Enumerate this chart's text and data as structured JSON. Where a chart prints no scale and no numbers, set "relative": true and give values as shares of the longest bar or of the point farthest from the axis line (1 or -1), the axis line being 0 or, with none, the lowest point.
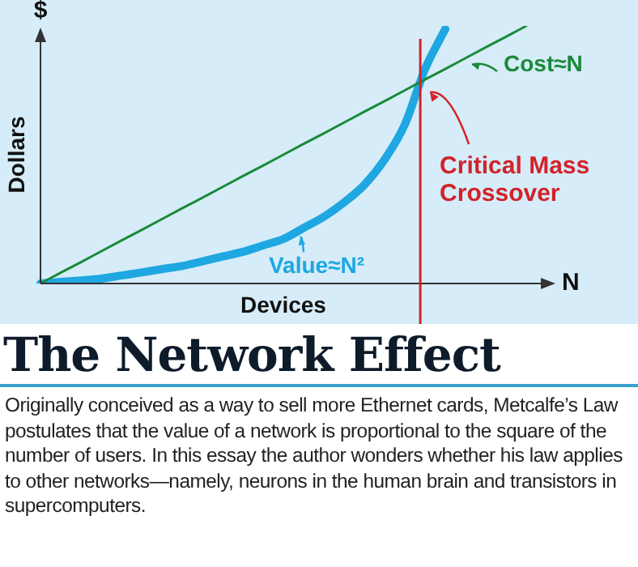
{
  "chart_data": {
    "type": "line",
    "relative": true,
    "title": "The Network Effect",
    "xlabel": "Devices",
    "ylabel": "Dollars",
    "categories": [
      null,
      null,
      null,
      null,
      null,
      null,
      null,
      null,
      null,
      null,
      null,
      null,
      null,
      null,
      null,
      null,
      null,
      null,
      null,
      null,
      null,
      null,
      null,
      null,
      null
    ],
    "series": [
      {
        "name": "Cost≈N",
        "color": "#1a8a3a",
        "values": [
          0,
          0.042,
          0.083,
          0.125,
          0.167,
          0.208,
          0.25,
          0.292,
          0.333,
          0.375,
          0.417,
          0.458,
          0.5,
          0.542,
          0.583,
          0.625,
          0.667,
          0.708,
          0.75,
          0.792,
          0.833,
          0.875,
          0.917,
          0.958,
          1
        ]
      },
      {
        "name": "Value≈N²",
        "color": "#1ea7e1",
        "values": [
          0,
          0.006,
          0.012,
          0.019,
          0.031,
          0.043,
          0.056,
          0.068,
          0.086,
          0.105,
          0.123,
          0.148,
          0.173,
          0.216,
          0.259,
          0.315,
          0.383,
          0.481,
          0.617,
          0.833,
          0.988,
          null,
          null,
          null,
          null
        ]
      }
    ],
    "annotations": [
      "$",
      "N",
      "Critical Mass Crossover",
      "Originally conceived as a way to sell more Ethernet cards, Metcalfe’s Law postulates that the value of a network is proportional to the square of the number of users. In this essay the author wonders whether his law applies to other networks—namely, neurons in the human brain and transistors in supercomputers."
    ],
    "marker": "none",
    "line_style": "solid"
  }
}
